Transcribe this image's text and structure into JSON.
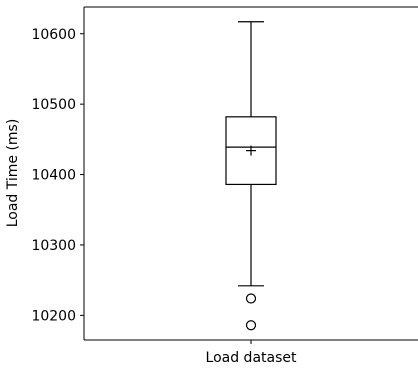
{
  "chart_data": {
    "type": "box",
    "categories": [
      "Load dataset"
    ],
    "xlabel": "",
    "ylabel": "Load Time (ms)",
    "ylim": [
      10165,
      10638
    ],
    "yticks": [
      10200,
      10300,
      10400,
      10500,
      10600
    ],
    "grid": false,
    "boxes": [
      {
        "category": "Load dataset",
        "whisker_low": 10242,
        "q1": 10386,
        "median": 10439,
        "mean": 10434,
        "q3": 10482,
        "whisker_high": 10617,
        "outliers": [
          10224,
          10186
        ]
      }
    ]
  }
}
